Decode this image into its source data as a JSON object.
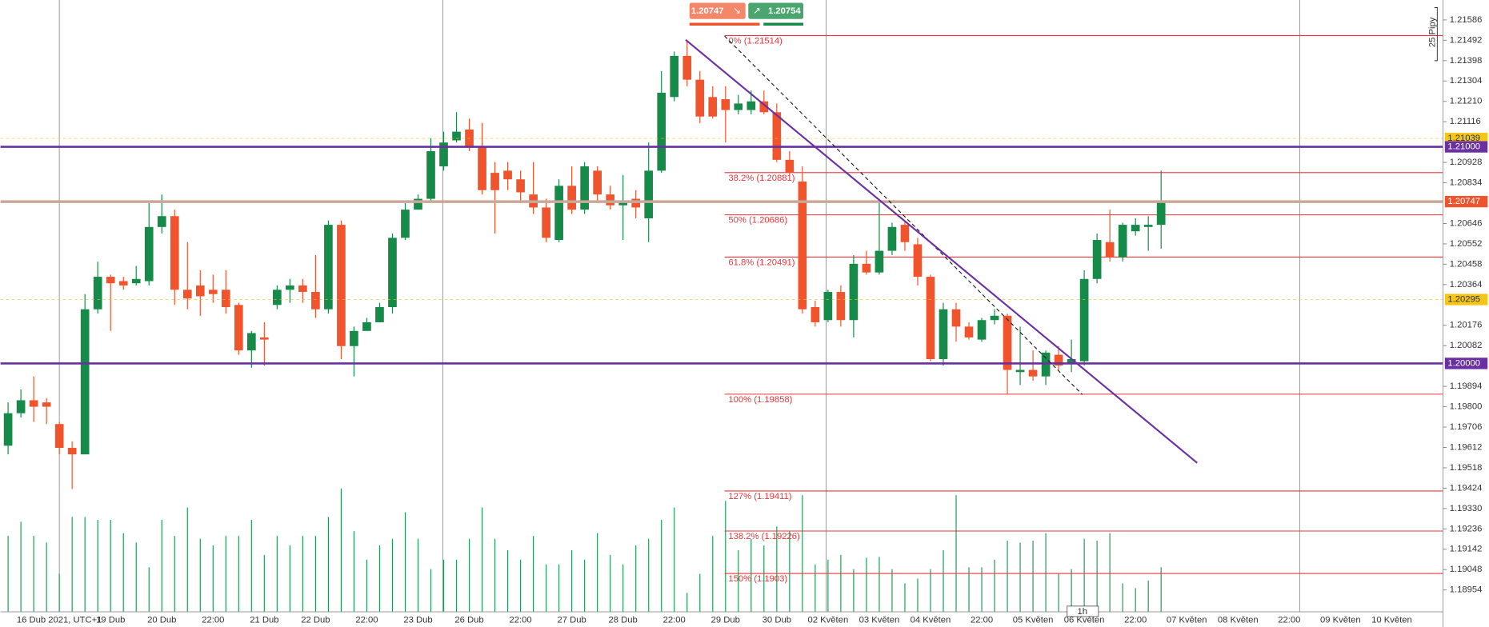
{
  "chart_data": {
    "type": "candlestick",
    "categories": [
      null,
      null,
      null,
      null,
      "16 Dub 2021, UTC+1",
      null,
      null,
      null,
      "19 Dub",
      null,
      null,
      null,
      "20 Dub",
      null,
      null,
      null,
      "22:00",
      null,
      null,
      null,
      "21 Dub",
      null,
      null,
      null,
      "22 Dub",
      null,
      null,
      null,
      "22:00",
      null,
      null,
      null,
      "23 Dub",
      null,
      null,
      null,
      "26 Dub",
      null,
      null,
      null,
      "22:00",
      null,
      null,
      null,
      "27 Dub",
      null,
      null,
      null,
      "28 Dub",
      null,
      null,
      null,
      "22:00",
      null,
      null,
      null,
      "29 Dub",
      null,
      null,
      null,
      "30 Dub",
      null,
      null,
      null,
      "02 Květen",
      null,
      null,
      null,
      "03 Květen",
      null,
      null,
      null,
      "04 Květen",
      null,
      null,
      null,
      "22:00",
      null,
      null,
      null,
      "05 Květen",
      null,
      null,
      null,
      "06 Květen",
      null,
      null,
      null,
      "22:00",
      null,
      null,
      null,
      "07 Květen",
      null,
      null,
      null,
      "08 Květen",
      null,
      null,
      null,
      "22:00",
      null,
      null,
      null,
      "09 Květen",
      null,
      null,
      null,
      "10 Květen"
    ],
    "open": [
      1.1962,
      1.1977,
      1.1983,
      1.1982,
      1.1972,
      1.1961,
      1.1958,
      1.2025,
      1.204,
      1.2038,
      1.2037,
      1.2038,
      1.2063,
      1.2068,
      1.2034,
      1.2036,
      1.2034,
      1.2034,
      1.2027,
      1.2006,
      1.2012,
      1.2027,
      1.2034,
      1.2036,
      1.2033,
      1.2025,
      1.2064,
      1.2008,
      1.2015,
      1.2019,
      1.2026,
      1.2058,
      1.2071,
      1.2076,
      1.2091,
      1.2103,
      1.2108,
      1.21,
      1.2088,
      1.2089,
      1.2085,
      1.2078,
      1.2072,
      1.2057,
      1.2082,
      1.2071,
      1.2089,
      1.2078,
      1.2073,
      1.2076,
      1.2067,
      1.2089,
      1.2123,
      1.2142,
      1.2131,
      1.2123,
      1.2122,
      1.2117,
      1.2117,
      1.2121,
      1.2116,
      1.2094,
      1.2084,
      1.2026,
      1.202,
      1.2033,
      1.202,
      1.2046,
      1.2042,
      1.2052,
      1.2064,
      1.2055,
      1.204,
      1.2002,
      1.2025,
      1.2017,
      1.2011,
      1.202,
      1.2022,
      1.1996,
      1.1997,
      1.1994,
      1.2004,
      1.2,
      1.2001,
      1.2039,
      1.2056,
      1.2049,
      1.2061,
      1.2063,
      1.2064,
      null,
      null,
      null,
      null,
      null,
      null,
      null,
      null,
      null,
      null,
      null,
      null,
      null,
      null,
      null,
      null,
      null,
      null
    ],
    "high": [
      1.1982,
      1.1988,
      1.1994,
      1.1984,
      1.1973,
      1.1964,
      1.2032,
      1.2047,
      1.2041,
      1.204,
      1.2045,
      1.2074,
      1.2078,
      1.2071,
      1.2056,
      1.2043,
      1.2041,
      1.2043,
      1.2028,
      1.2015,
      1.2019,
      1.2036,
      1.2039,
      1.2039,
      1.205,
      1.2066,
      1.2066,
      1.2017,
      1.2021,
      1.2028,
      1.206,
      1.2074,
      1.2078,
      1.2104,
      1.2107,
      1.2116,
      1.2113,
      1.2111,
      1.2093,
      1.2093,
      1.2089,
      1.2093,
      1.2076,
      1.2085,
      1.2091,
      1.2093,
      1.2091,
      1.2082,
      1.2087,
      1.208,
      1.2102,
      1.2135,
      1.2144,
      1.2149,
      1.2135,
      1.2128,
      1.2128,
      1.2124,
      1.2126,
      1.2126,
      1.212,
      1.2098,
      1.2091,
      1.2029,
      1.2034,
      1.2036,
      1.205,
      1.2052,
      1.2076,
      1.2065,
      1.2066,
      1.2058,
      1.2041,
      1.2028,
      1.2028,
      1.2019,
      1.2021,
      1.2025,
      1.2023,
      1.2017,
      1.2006,
      1.2006,
      1.2008,
      1.2011,
      1.2043,
      1.206,
      1.2071,
      1.2065,
      1.2067,
      1.2068,
      1.2089,
      null,
      null,
      null,
      null,
      null,
      null,
      null,
      null,
      null,
      null,
      null,
      null,
      null,
      null,
      null,
      null,
      null,
      null
    ],
    "low": [
      1.1958,
      1.1975,
      1.1973,
      1.1972,
      1.1958,
      1.1942,
      1.1958,
      1.2023,
      1.2015,
      1.2034,
      1.2036,
      1.2036,
      1.206,
      1.2027,
      1.2025,
      1.2022,
      1.2028,
      1.2023,
      1.2004,
      1.1998,
      1.1999,
      1.2025,
      1.2028,
      1.2028,
      1.2021,
      1.2023,
      1.2002,
      1.1994,
      1.2015,
      1.2019,
      1.2023,
      1.2057,
      1.2071,
      1.2075,
      1.2089,
      1.2102,
      1.2098,
      1.2078,
      1.206,
      1.208,
      1.2074,
      1.2069,
      1.2056,
      1.2056,
      1.2069,
      1.2069,
      1.2074,
      1.2071,
      1.2057,
      1.2067,
      1.2056,
      1.2088,
      1.2121,
      1.2128,
      1.2111,
      1.2113,
      1.2102,
      1.2115,
      1.2115,
      1.2115,
      1.2093,
      1.2087,
      1.2023,
      1.2017,
      1.2019,
      1.2017,
      1.2012,
      1.2041,
      1.2041,
      1.205,
      1.2052,
      1.2036,
      1.2001,
      1.1999,
      1.201,
      1.2011,
      1.201,
      1.2018,
      1.1986,
      1.199,
      1.1992,
      1.199,
      1.1997,
      1.1996,
      1.1999,
      1.2037,
      1.2047,
      1.2047,
      1.2059,
      1.2052,
      1.2053,
      null,
      null,
      null,
      null,
      null,
      null,
      null,
      null,
      null,
      null,
      null,
      null,
      null,
      null,
      null,
      null,
      null,
      null
    ],
    "close": [
      1.1977,
      1.1983,
      1.198,
      1.198,
      1.1961,
      1.1958,
      1.2025,
      1.204,
      1.2037,
      1.2036,
      1.2039,
      1.2063,
      1.2068,
      1.2034,
      1.203,
      1.2031,
      1.2032,
      1.2026,
      1.2006,
      1.2014,
      1.2011,
      1.2034,
      1.2036,
      1.2033,
      1.2025,
      1.2064,
      1.2008,
      1.2015,
      1.2019,
      1.2026,
      1.2058,
      1.2071,
      1.2076,
      1.2098,
      1.2102,
      1.2107,
      1.21,
      1.208,
      1.208,
      1.2085,
      1.2079,
      1.2072,
      1.2058,
      1.2082,
      1.2071,
      1.2091,
      1.2078,
      1.2073,
      1.2075,
      1.2072,
      1.2089,
      1.2125,
      1.2142,
      1.2131,
      1.2114,
      1.2114,
      1.2117,
      1.212,
      1.2121,
      1.2116,
      1.2094,
      1.2088,
      1.2025,
      1.2019,
      1.2033,
      1.202,
      1.2046,
      1.2042,
      1.2052,
      1.2063,
      1.2056,
      1.204,
      1.2002,
      1.2025,
      1.2017,
      1.2012,
      1.202,
      1.2022,
      1.1997,
      1.1997,
      1.1994,
      1.2005,
      1.1999,
      1.2002,
      1.2039,
      1.2057,
      1.2049,
      1.2064,
      1.2064,
      1.2064,
      1.2075,
      null,
      null,
      null,
      null,
      null,
      null,
      null,
      null,
      null,
      null,
      null,
      null,
      null,
      null,
      null,
      null,
      null,
      null
    ],
    "volume": [
      80,
      95,
      80,
      73,
      40,
      100,
      100,
      97,
      97,
      83,
      73,
      47,
      97,
      80,
      110,
      77,
      70,
      80,
      80,
      97,
      60,
      80,
      70,
      80,
      80,
      100,
      130,
      85,
      55,
      70,
      77,
      105,
      77,
      45,
      55,
      55,
      77,
      110,
      77,
      65,
      55,
      80,
      50,
      50,
      65,
      55,
      83,
      60,
      50,
      70,
      77,
      97,
      110,
      20,
      40,
      80,
      117,
      65,
      77,
      70,
      90,
      85,
      123,
      50,
      55,
      60,
      45,
      57,
      58,
      45,
      30,
      35,
      45,
      65,
      123,
      47,
      47,
      55,
      75,
      73,
      75,
      83,
      40,
      45,
      77,
      75,
      83,
      30,
      25,
      33,
      47,
      null,
      null,
      null,
      null,
      null,
      null,
      null,
      null,
      null,
      null,
      null,
      null,
      null,
      null,
      null,
      null,
      null,
      null
    ],
    "up_color": "#168a48",
    "down_color": "#f0542d",
    "volume_color": "#1f9a55",
    "ylim": [
      1.18853,
      1.21678
    ],
    "yticks": [
      1.21586,
      1.21492,
      1.21398,
      1.21304,
      {
        "value": 1.2121,
        "label": "1.21210"
      },
      1.21116,
      1.20928,
      1.20834,
      1.20646,
      1.20552,
      1.20458,
      1.20364,
      1.20176,
      1.20082,
      1.19894,
      {
        "value": 1.198,
        "label": "1.19800"
      },
      1.19706,
      1.19612,
      1.19518,
      1.19424,
      {
        "value": 1.1933,
        "label": "1.19330"
      },
      1.19236,
      1.19142,
      1.19048,
      1.18954
    ],
    "levels": [
      {
        "value": 1.21039,
        "label": "1.21039",
        "color": "#f5c518",
        "text_color": "#333333",
        "style": "dashed"
      },
      {
        "value": 1.21,
        "label": "1.21000",
        "color": "#6a2fa0",
        "text_color": "#ffffff",
        "style": "solid"
      },
      {
        "value": 1.20747,
        "label": "1.20747",
        "color": "#f0542d",
        "text_color": "#ffffff",
        "style": "price"
      },
      {
        "value": 1.20295,
        "label": "1.20295",
        "color": "#f5c518",
        "text_color": "#333333",
        "style": "dashed"
      },
      {
        "value": 1.2,
        "label": "1.20000",
        "color": "#6a2fa0",
        "text_color": "#ffffff",
        "style": "solid"
      }
    ],
    "fib_color": "#e8343a",
    "fib_levels": [
      {
        "value": 1.21514,
        "label": "0% (1.21514)"
      },
      {
        "value": 1.20881,
        "label": "38.2% (1.20881)"
      },
      {
        "value": 1.20686,
        "label": "50% (1.20686)"
      },
      {
        "value": 1.20491,
        "label": "61.8% (1.20491)"
      },
      {
        "value": 1.19858,
        "label": "100% (1.19858)"
      },
      {
        "value": 1.19411,
        "label": "127% (1.19411)"
      },
      {
        "value": 1.19226,
        "label": "138.2% (1.19226)"
      },
      {
        "value": 1.1903,
        "label": "150% (1.1903)"
      }
    ]
  },
  "ui": {
    "sell": "1.20747",
    "buy": "1.20754",
    "pips": "25 Pipy",
    "timeframe": "1h"
  }
}
